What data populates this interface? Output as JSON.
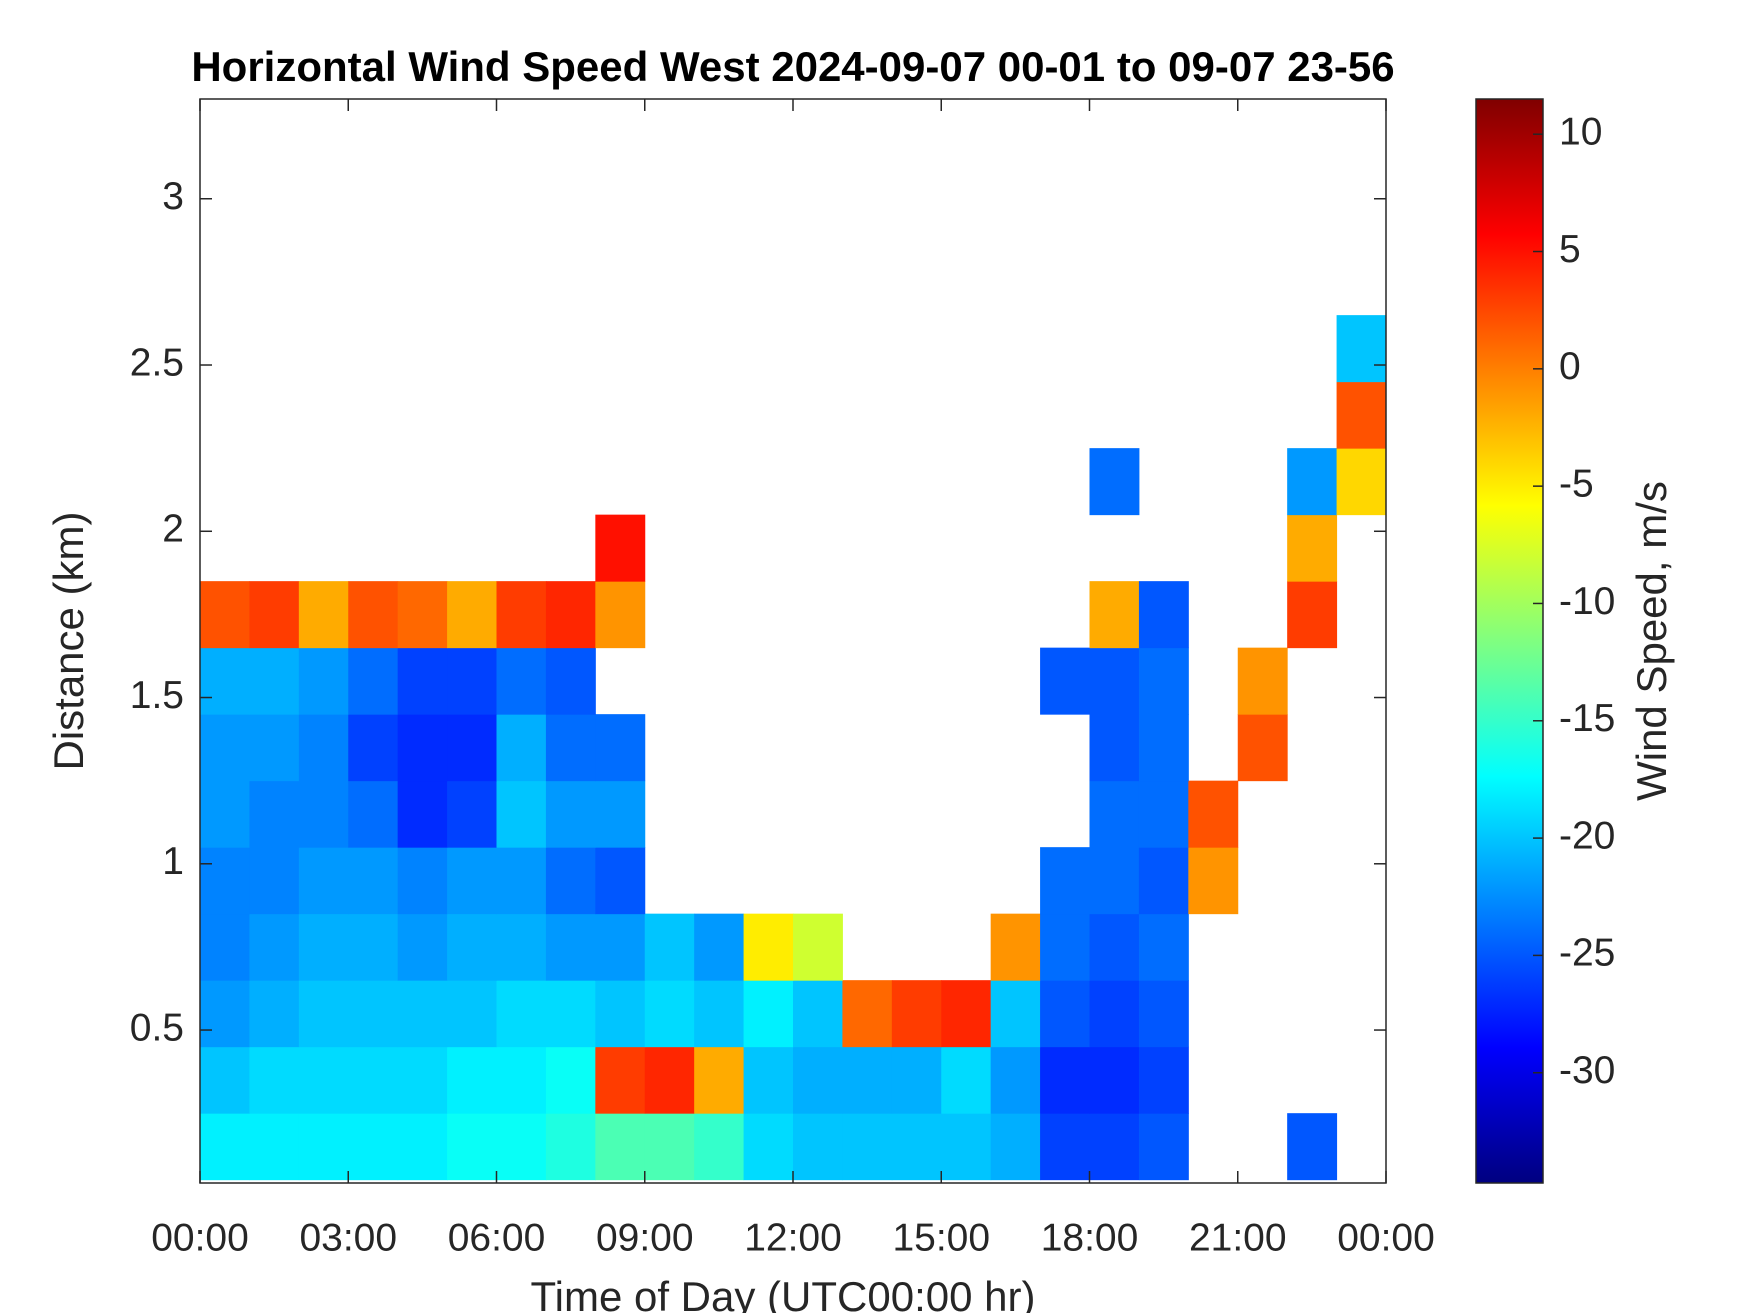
{
  "chart_data": {
    "type": "heatmap",
    "title": "Horizontal Wind Speed West 2024-09-07 00-01 to 09-07 23-56",
    "x_label": "Time of Day (UTC00:00 hr)",
    "y_label": "Distance (km)",
    "colorbar_label": "Wind Speed, m/s",
    "colormap": "jet",
    "x_edges": [
      0,
      1,
      2,
      3,
      4,
      5,
      6,
      7,
      8,
      9,
      10,
      11,
      12,
      13,
      14,
      15,
      16,
      17,
      18,
      19,
      20,
      21,
      22,
      23,
      24
    ],
    "y_edges": [
      0.05,
      0.25,
      0.45,
      0.65,
      0.85,
      1.05,
      1.25,
      1.45,
      1.65,
      1.85,
      2.05,
      2.25,
      2.45,
      2.65
    ],
    "values": [
      [
        -18,
        -18,
        -18,
        -18,
        -18,
        -17,
        -17,
        -16,
        -14,
        -14,
        -15,
        -19,
        -20,
        -20,
        -20,
        -20,
        -21,
        -26,
        -26,
        -25,
        null,
        null,
        -25,
        null
      ],
      [
        -20,
        -19,
        -19,
        -19,
        -19,
        -18,
        -18,
        -17,
        3,
        4,
        -2,
        -20,
        -21,
        -21,
        -21,
        -19,
        -22,
        -27,
        -27,
        -26,
        null,
        null,
        null,
        null
      ],
      [
        -22,
        -21,
        -20,
        -20,
        -20,
        -20,
        -19,
        -19,
        -20,
        -19,
        -20,
        -18,
        -20,
        1,
        3,
        4,
        -20,
        -25,
        -26,
        -25,
        null,
        null,
        null,
        null
      ],
      [
        -23,
        -22,
        -21,
        -21,
        -22,
        -21,
        -21,
        -22,
        -22,
        -20,
        -22,
        -5,
        -8,
        null,
        null,
        null,
        -1,
        -24,
        -25,
        -24,
        null,
        null,
        null,
        null
      ],
      [
        -23,
        -23,
        -22,
        -22,
        -23,
        -22,
        -22,
        -24,
        -25,
        null,
        null,
        null,
        null,
        null,
        null,
        null,
        null,
        -24,
        -24,
        -25,
        -1,
        null,
        null,
        null
      ],
      [
        -22,
        -23,
        -23,
        -24,
        -27,
        -26,
        -20,
        -22,
        -22,
        null,
        null,
        null,
        null,
        null,
        null,
        null,
        null,
        null,
        -24,
        -24,
        2,
        null,
        null,
        null
      ],
      [
        -22,
        -22,
        -23,
        -26,
        -27,
        -27,
        -21,
        -24,
        -24,
        null,
        null,
        null,
        null,
        null,
        null,
        null,
        null,
        null,
        -25,
        -24,
        null,
        2,
        null,
        null
      ],
      [
        -21,
        -21,
        -22,
        -24,
        -26,
        -26,
        -24,
        -25,
        null,
        null,
        null,
        null,
        null,
        null,
        null,
        null,
        null,
        -25,
        -25,
        -24,
        null,
        -1,
        null,
        null
      ],
      [
        2,
        3,
        -2,
        2,
        1,
        -2,
        3,
        4,
        -1,
        null,
        null,
        null,
        null,
        null,
        null,
        null,
        null,
        null,
        -2,
        -25,
        null,
        null,
        3,
        null
      ],
      [
        null,
        null,
        null,
        null,
        null,
        null,
        null,
        null,
        5,
        null,
        null,
        null,
        null,
        null,
        null,
        null,
        null,
        null,
        null,
        null,
        null,
        null,
        -2,
        null
      ],
      [
        null,
        null,
        null,
        null,
        null,
        null,
        null,
        null,
        null,
        null,
        null,
        null,
        null,
        null,
        null,
        null,
        null,
        null,
        -24,
        null,
        null,
        null,
        -22,
        -4
      ],
      [
        null,
        null,
        null,
        null,
        null,
        null,
        null,
        null,
        null,
        null,
        null,
        null,
        null,
        null,
        null,
        null,
        null,
        null,
        null,
        null,
        null,
        null,
        null,
        2
      ],
      [
        null,
        null,
        null,
        null,
        null,
        null,
        null,
        null,
        null,
        null,
        null,
        null,
        null,
        null,
        null,
        null,
        null,
        null,
        null,
        null,
        null,
        null,
        null,
        -20
      ]
    ],
    "xlim": [
      0,
      24
    ],
    "xticks": [
      {
        "value": 0,
        "label": "00:00"
      },
      {
        "value": 3,
        "label": "03:00"
      },
      {
        "value": 6,
        "label": "06:00"
      },
      {
        "value": 9,
        "label": "09:00"
      },
      {
        "value": 12,
        "label": "12:00"
      },
      {
        "value": 15,
        "label": "15:00"
      },
      {
        "value": 18,
        "label": "18:00"
      },
      {
        "value": 21,
        "label": "21:00"
      },
      {
        "value": 24,
        "label": "00:00"
      }
    ],
    "ylim": [
      0.04,
      3.3
    ],
    "yticks": [
      0.5,
      1,
      1.5,
      2,
      2.5,
      3
    ],
    "clim": [
      -34.7,
      11.5
    ],
    "cticks": [
      -30,
      -25,
      -20,
      -15,
      -10,
      -5,
      0,
      5,
      10
    ]
  }
}
